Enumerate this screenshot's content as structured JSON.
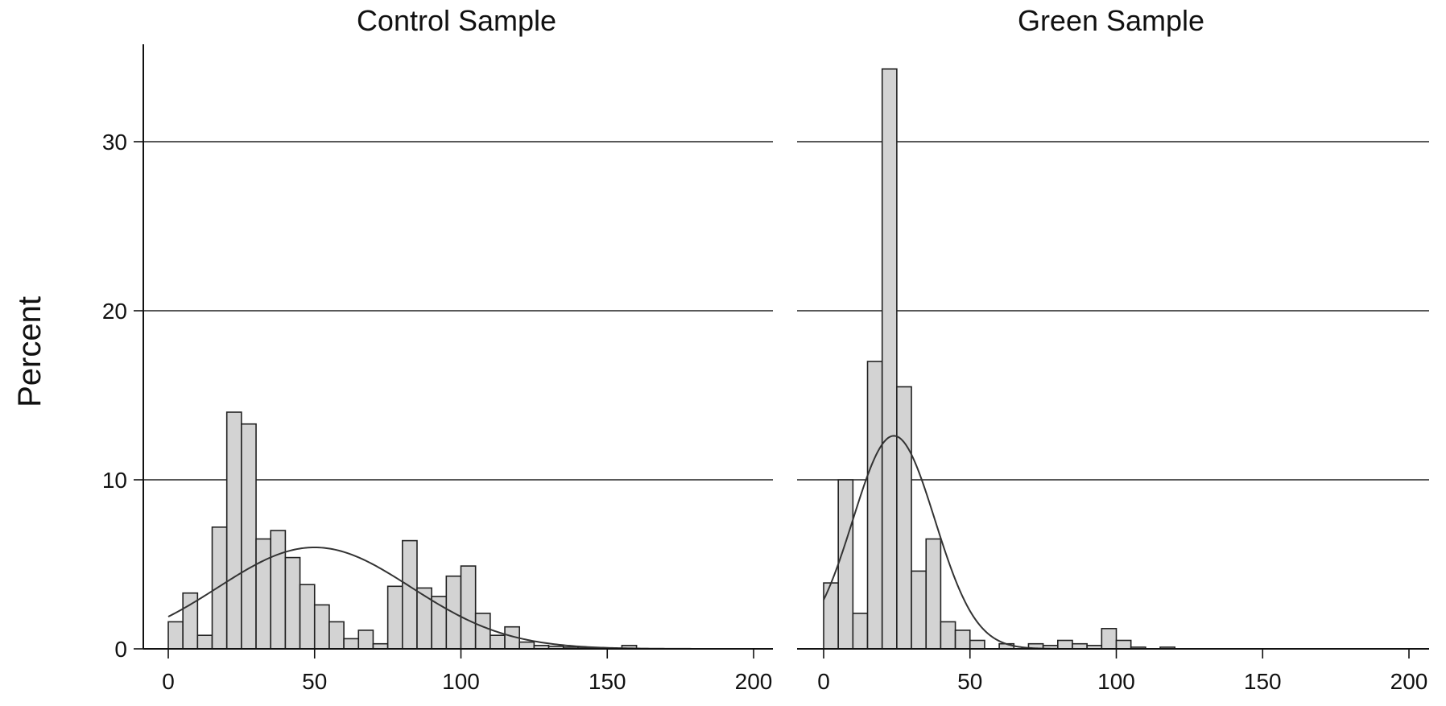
{
  "y_axis_label": "Percent",
  "colors": {
    "bar_fill": "#d3d3d3",
    "bar_stroke": "#222222",
    "curve": "#333333",
    "grid": "#222222"
  },
  "chart_data": [
    {
      "type": "bar",
      "title": "Control Sample",
      "xlabel": "",
      "ylabel": "Percent",
      "xlim": [
        0,
        200
      ],
      "ylim": [
        0,
        35
      ],
      "xticks": [
        0,
        50,
        100,
        150,
        200
      ],
      "yticks": [
        0,
        10,
        20,
        30
      ],
      "grid": "horizontal",
      "bin_width": 5,
      "bins": [
        [
          0,
          1.6
        ],
        [
          5,
          3.3
        ],
        [
          10,
          0.8
        ],
        [
          15,
          7.2
        ],
        [
          20,
          14.0
        ],
        [
          25,
          13.3
        ],
        [
          30,
          6.5
        ],
        [
          35,
          7.0
        ],
        [
          40,
          5.4
        ],
        [
          45,
          3.8
        ],
        [
          50,
          2.6
        ],
        [
          55,
          1.6
        ],
        [
          60,
          0.6
        ],
        [
          65,
          1.1
        ],
        [
          70,
          0.3
        ],
        [
          75,
          3.7
        ],
        [
          80,
          6.4
        ],
        [
          85,
          3.6
        ],
        [
          90,
          3.1
        ],
        [
          95,
          4.3
        ],
        [
          100,
          4.9
        ],
        [
          105,
          2.1
        ],
        [
          110,
          0.8
        ],
        [
          115,
          1.3
        ],
        [
          120,
          0.4
        ],
        [
          125,
          0.2
        ],
        [
          130,
          0.15
        ],
        [
          135,
          0.1
        ],
        [
          140,
          0.05
        ],
        [
          145,
          0.05
        ],
        [
          150,
          0.0
        ],
        [
          155,
          0.2
        ]
      ],
      "normal_curve": {
        "mean": 50,
        "sd": 33,
        "peak": 6.0
      }
    },
    {
      "type": "bar",
      "title": "Green Sample",
      "xlabel": "",
      "ylabel": "",
      "xlim": [
        0,
        200
      ],
      "ylim": [
        0,
        35
      ],
      "xticks": [
        0,
        50,
        100,
        150,
        200
      ],
      "yticks": [
        0,
        10,
        20,
        30
      ],
      "grid": "horizontal",
      "bin_width": 5,
      "bins": [
        [
          0,
          3.9
        ],
        [
          5,
          10.0
        ],
        [
          10,
          2.1
        ],
        [
          15,
          17.0
        ],
        [
          20,
          34.3
        ],
        [
          25,
          15.5
        ],
        [
          30,
          4.6
        ],
        [
          35,
          6.5
        ],
        [
          40,
          1.6
        ],
        [
          45,
          1.1
        ],
        [
          50,
          0.5
        ],
        [
          55,
          0.0
        ],
        [
          60,
          0.3
        ],
        [
          65,
          0.0
        ],
        [
          70,
          0.3
        ],
        [
          75,
          0.2
        ],
        [
          80,
          0.5
        ],
        [
          85,
          0.3
        ],
        [
          90,
          0.2
        ],
        [
          95,
          1.2
        ],
        [
          100,
          0.5
        ],
        [
          105,
          0.1
        ],
        [
          110,
          0.0
        ],
        [
          115,
          0.1
        ]
      ],
      "normal_curve": {
        "mean": 24,
        "sd": 14,
        "peak": 12.6
      }
    }
  ]
}
